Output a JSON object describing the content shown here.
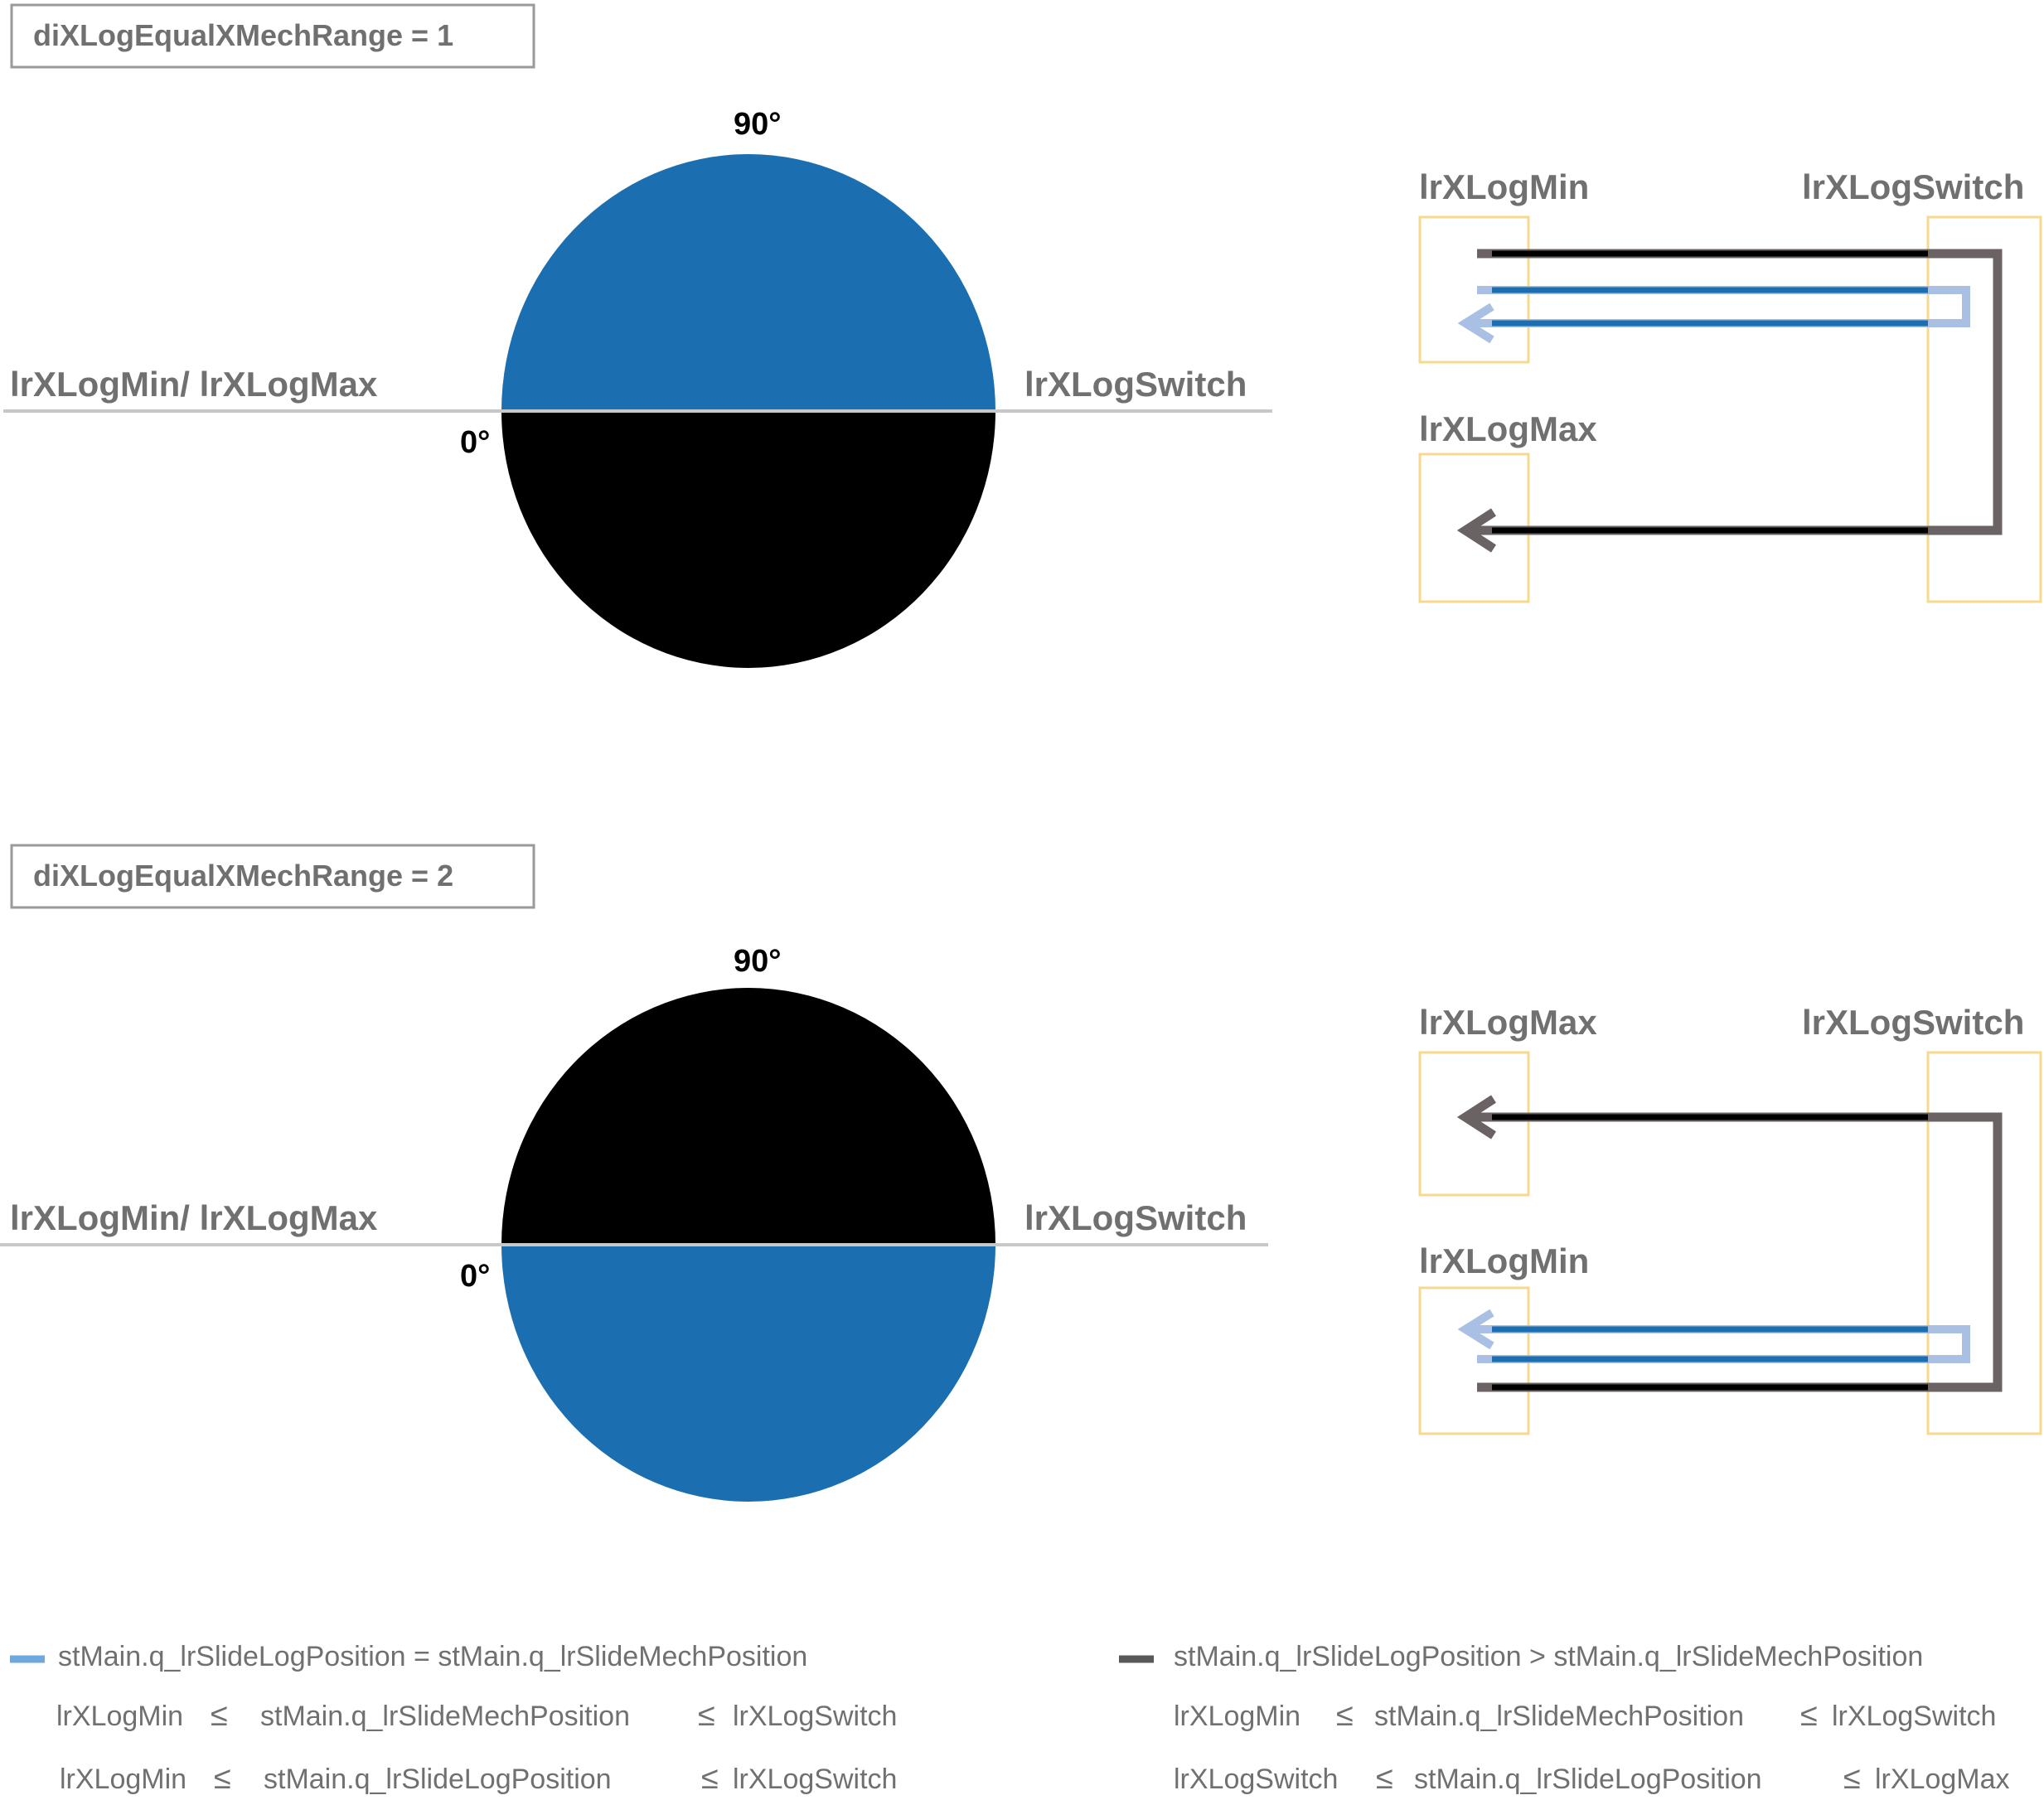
{
  "panels": [
    {
      "title": "diXLogEqualXMechRange = 1",
      "degree_top": "90°",
      "degree_zero": "0°",
      "label_left": "lrXLogMin/ lrXLogMax",
      "label_right": "lrXLogSwitch",
      "upper_half_color": "#1b6eb0",
      "lower_half_color": "#000000",
      "path_labels": {
        "top_left": "lrXLogMin",
        "top_right": "lrXLogSwitch",
        "bottom_left": "lrXLogMax"
      }
    },
    {
      "title": "diXLogEqualXMechRange = 2",
      "degree_top": "90°",
      "degree_zero": "0°",
      "label_left": "lrXLogMin/ lrXLogMax",
      "label_right": "lrXLogSwitch",
      "upper_half_color": "#000000",
      "lower_half_color": "#1b6eb0",
      "path_labels": {
        "top_left": "lrXLogMax",
        "top_right": "lrXLogSwitch",
        "bottom_left": "lrXLogMin"
      }
    }
  ],
  "legend": {
    "equal": {
      "color": "#6fa8dc",
      "condition": "stMain.q_lrSlideLogPosition = stMain.q_lrSlideMechPosition",
      "line1": {
        "left": "lrXLogMin",
        "op1": "≤",
        "middle": "stMain.q_lrSlideMechPosition",
        "op2": "≤",
        "right": "lrXLogSwitch"
      },
      "line2": {
        "left": "lrXLogMin",
        "op1": "≤",
        "middle": "stMain.q_lrSlideLogPosition",
        "op2": "≤",
        "right": "lrXLogSwitch"
      }
    },
    "greater": {
      "color": "#595959",
      "condition": "stMain.q_lrSlideLogPosition > stMain.q_lrSlideMechPosition",
      "line1": {
        "left": "lrXLogMin",
        "op1": "≤",
        "middle": "stMain.q_lrSlideMechPosition",
        "op2": "≤",
        "right": "lrXLogSwitch"
      },
      "line2": {
        "left": "lrXLogSwitch",
        "op1": "≤",
        "middle": "stMain.q_lrSlideLogPosition",
        "op2": "≤",
        "right": "lrXLogMax"
      }
    }
  },
  "colors": {
    "blue_arc": "#1b6eb0",
    "blue_arrow": "#1b6eb0",
    "blue_arrow_halo": "#a9bfe3",
    "dark_arrow": "#000000",
    "dark_arrow_halo": "#6b6363",
    "frame_yellow": "#f6d98f",
    "axis_gray": "#c8c8c8",
    "box_border": "#9a9a9a"
  }
}
